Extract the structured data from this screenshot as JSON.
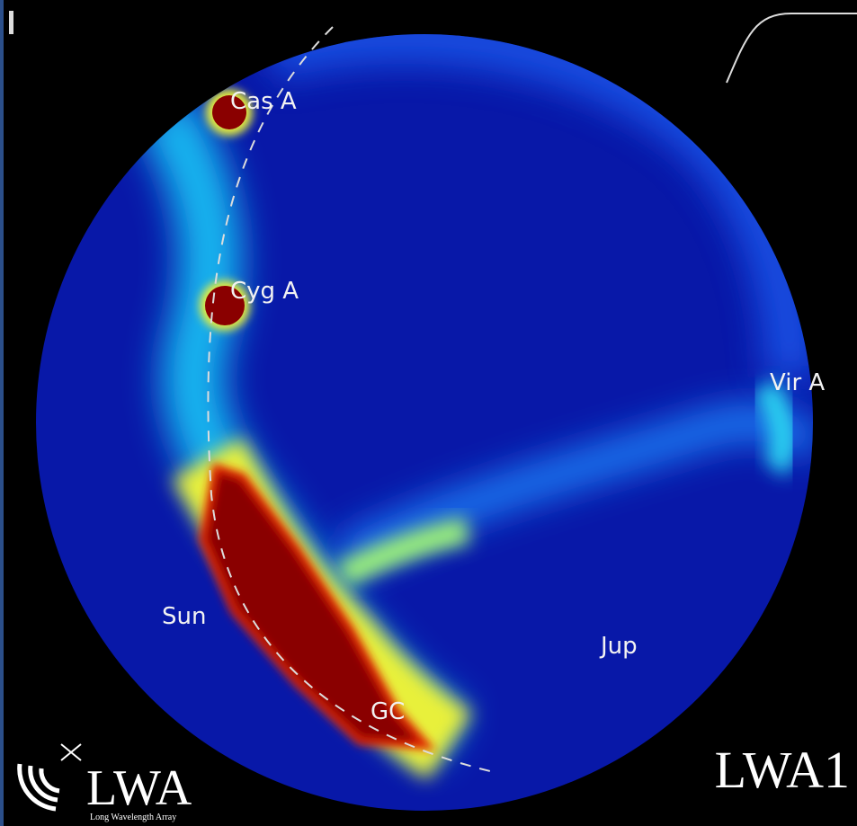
{
  "sources": [
    {
      "label": "Cas A"
    },
    {
      "label": "Cyg A"
    },
    {
      "label": "Vir A"
    },
    {
      "label": "Sun"
    },
    {
      "label": "Jup"
    },
    {
      "label": "GC"
    }
  ],
  "station": "LWA1",
  "logo": {
    "name": "LWA",
    "subtitle": "Long Wavelength Array"
  }
}
